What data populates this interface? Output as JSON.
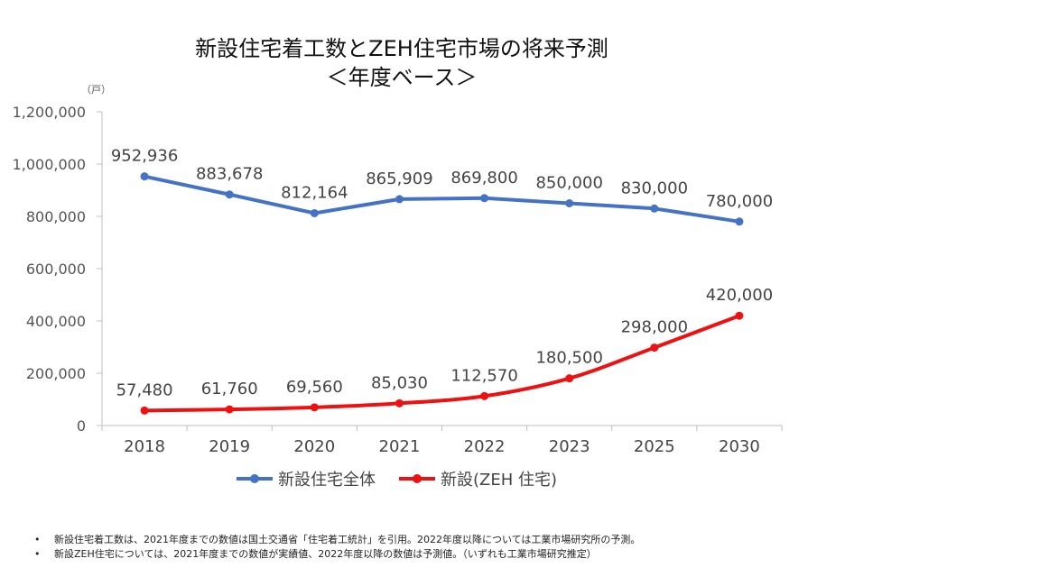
{
  "chart_data": {
    "type": "line",
    "title_lines": [
      "新設住宅着工数とZEH住宅市場の将来予測",
      "＜年度ベース＞"
    ],
    "unit_label": "（戸）",
    "categories": [
      "2018",
      "2019",
      "2020",
      "2021",
      "2022",
      "2023",
      "2025",
      "2030"
    ],
    "y_ticks": [
      "1,200,000",
      "1,000,000",
      "800,000",
      "600,000",
      "400,000",
      "200,000",
      "0"
    ],
    "ylim": [
      0,
      1200000
    ],
    "grid": false,
    "legend_position": "bottom",
    "series": [
      {
        "name": "新設住宅全体",
        "color": "#4472C4",
        "values": [
          952936,
          883678,
          812164,
          865909,
          869800,
          850000,
          830000,
          780000
        ],
        "labels": [
          "952,936",
          "883,678",
          "812,164",
          "865,909",
          "869,800",
          "850,000",
          "830,000",
          "780,000"
        ]
      },
      {
        "name": "新設(ZEH 住宅)",
        "color": "#EE1111",
        "values": [
          57480,
          61760,
          69560,
          85030,
          112570,
          180500,
          298000,
          420000
        ],
        "labels": [
          "57,480",
          "61,760",
          "69,560",
          "85,030",
          "112,570",
          "180,500",
          "298,000",
          "420,000"
        ]
      }
    ]
  },
  "notes": [
    {
      "bullet": "•",
      "text": "新設住宅着工数は、2021年度までの数値は国土交通省「住宅着工統計」を引用。2022年度以降については工業市場研究所の予測。"
    },
    {
      "bullet": "•",
      "text": "新設ZEH住宅については、2021年度までの数値が実績値、2022年度以降の数値は予測値。（いずれも工業市場研究推定）"
    }
  ]
}
